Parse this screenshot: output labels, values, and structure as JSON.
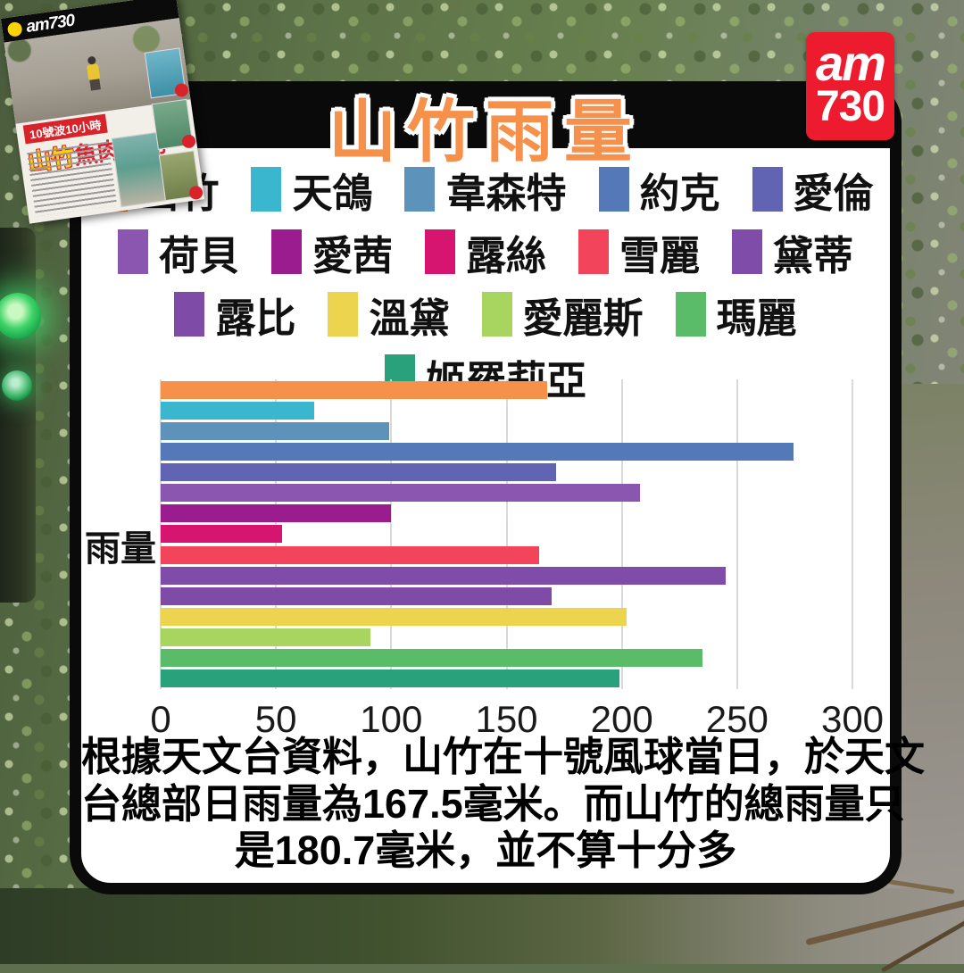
{
  "header": {
    "title": "山竹雨量"
  },
  "brand": {
    "logo_line1": "am",
    "logo_line2": "730"
  },
  "newspaper": {
    "masthead": "am730",
    "banner": "10號波10小時",
    "headline_highlight": "山竹",
    "headline_rest": "魚肉香港"
  },
  "chart_data": {
    "type": "bar",
    "orientation": "horizontal",
    "title": "山竹雨量",
    "ylabel": "雨量",
    "xlabel": "",
    "xlim": [
      0,
      300
    ],
    "x_ticks": [
      0,
      50,
      100,
      150,
      200,
      250,
      300
    ],
    "grid": true,
    "legend_position": "top",
    "legend_rows": [
      5,
      5,
      4,
      1
    ],
    "unit": "毫米",
    "series": [
      {
        "name": "山竹",
        "value": 167.5,
        "color": "#f5914a"
      },
      {
        "name": "天鴿",
        "value": 66.5,
        "color": "#3bb6cf"
      },
      {
        "name": "韋森特",
        "value": 99,
        "color": "#5d93bb"
      },
      {
        "name": "約克",
        "value": 274.5,
        "color": "#5578b8"
      },
      {
        "name": "愛倫",
        "value": 171.5,
        "color": "#6064b2"
      },
      {
        "name": "荷貝",
        "value": 208,
        "color": "#8a56b0"
      },
      {
        "name": "愛茜",
        "value": 100,
        "color": "#9a1c8e"
      },
      {
        "name": "露絲",
        "value": 52.5,
        "color": "#d5156f"
      },
      {
        "name": "雪麗",
        "value": 164,
        "color": "#f2455c"
      },
      {
        "name": "黛蒂",
        "value": 245,
        "color": "#7f4da9"
      },
      {
        "name": "露比",
        "value": 169.5,
        "color": "#7e4ca7"
      },
      {
        "name": "溫黛",
        "value": 202,
        "color": "#edd44f"
      },
      {
        "name": "愛麗斯",
        "value": 91,
        "color": "#a8d55f"
      },
      {
        "name": "瑪麗",
        "value": 235,
        "color": "#5abb68"
      },
      {
        "name": "姬羅莉亞",
        "value": 199,
        "color": "#29a27c"
      }
    ]
  },
  "caption": {
    "line1": "根據天文台資料，山竹在十號風球當日，於天文",
    "line2": "台總部日雨量為167.5毫米。而山竹的總雨量只",
    "line3": "是180.7毫米，並不算十分多"
  }
}
